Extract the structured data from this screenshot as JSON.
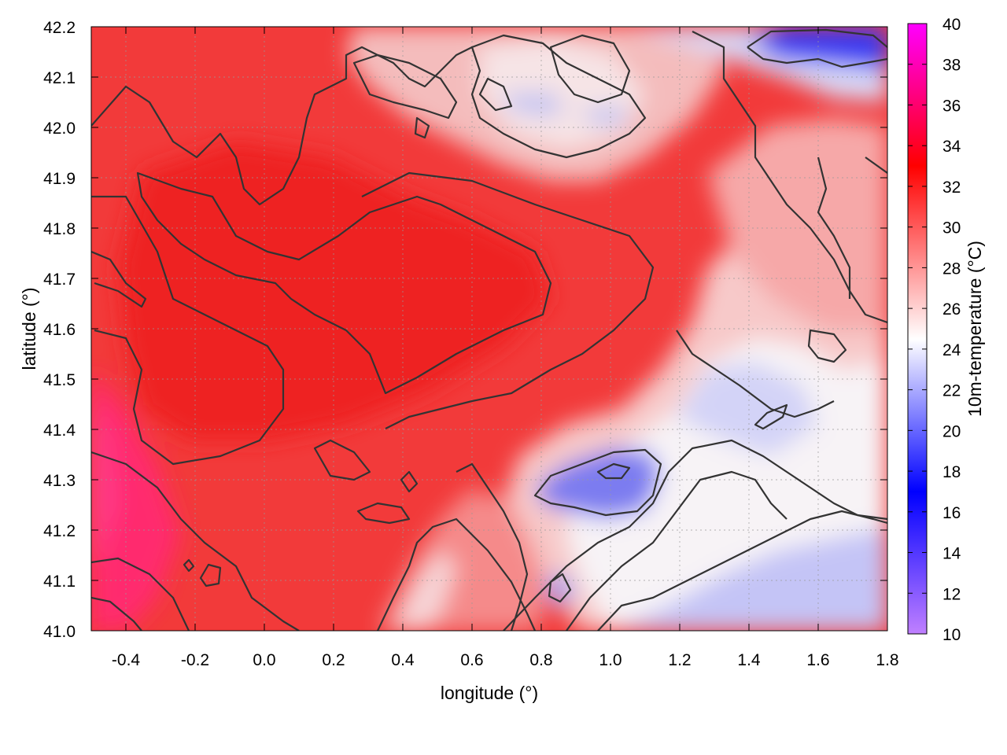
{
  "chart_data": {
    "type": "heatmap",
    "xlabel": "longitude (°)",
    "ylabel": "latitude (°)",
    "colorbar_label": "10m-temperature (°C)",
    "xlim": [
      -0.5,
      1.8
    ],
    "ylim": [
      41.0,
      42.2
    ],
    "zlim": [
      10,
      40
    ],
    "x_ticks": [
      "-0.4",
      "-0.2",
      "0.0",
      "0.2",
      "0.4",
      "0.6",
      "0.8",
      "1.0",
      "1.2",
      "1.4",
      "1.6",
      "1.8"
    ],
    "y_ticks": [
      "41.0",
      "41.1",
      "41.2",
      "41.3",
      "41.4",
      "41.5",
      "41.6",
      "41.7",
      "41.8",
      "41.9",
      "42.0",
      "42.1",
      "42.2"
    ],
    "colorbar_ticks": [
      "10",
      "12",
      "14",
      "16",
      "18",
      "20",
      "22",
      "24",
      "26",
      "28",
      "30",
      "32",
      "34",
      "36",
      "38",
      "40"
    ],
    "colormap": [
      {
        "value": 10,
        "color": "#c080ff"
      },
      {
        "value": 17,
        "color": "#0000ff"
      },
      {
        "value": 24.5,
        "color": "#ffffff"
      },
      {
        "value": 33,
        "color": "#ff0000"
      },
      {
        "value": 40,
        "color": "#ff00ff"
      }
    ],
    "grid": true,
    "grid_style": "dotted",
    "contours": true,
    "contour_color": "#333333",
    "legend": "colorbar-right",
    "field_summary": [
      {
        "region": "south-west lowlands (lon -0.5 to -0.2, lat 41.0 to 41.4)",
        "value": 35
      },
      {
        "region": "central interior (lon 0.0 to 0.6, lat 41.4 to 41.9)",
        "value": 33
      },
      {
        "region": "north-east mountains (lon 1.4 to 1.8, lat 42.1 to 42.2)",
        "value": 18
      },
      {
        "region": "coastal hills (lon 0.8 to 1.1, lat 41.2 to 41.35)",
        "value": 21
      },
      {
        "region": "sea (lon 1.2 to 1.8, lat 41.0 to 41.2)",
        "value": 23
      },
      {
        "region": "east interior (lon 1.2 to 1.6, lat 41.4 to 41.6)",
        "value": 24
      }
    ]
  }
}
